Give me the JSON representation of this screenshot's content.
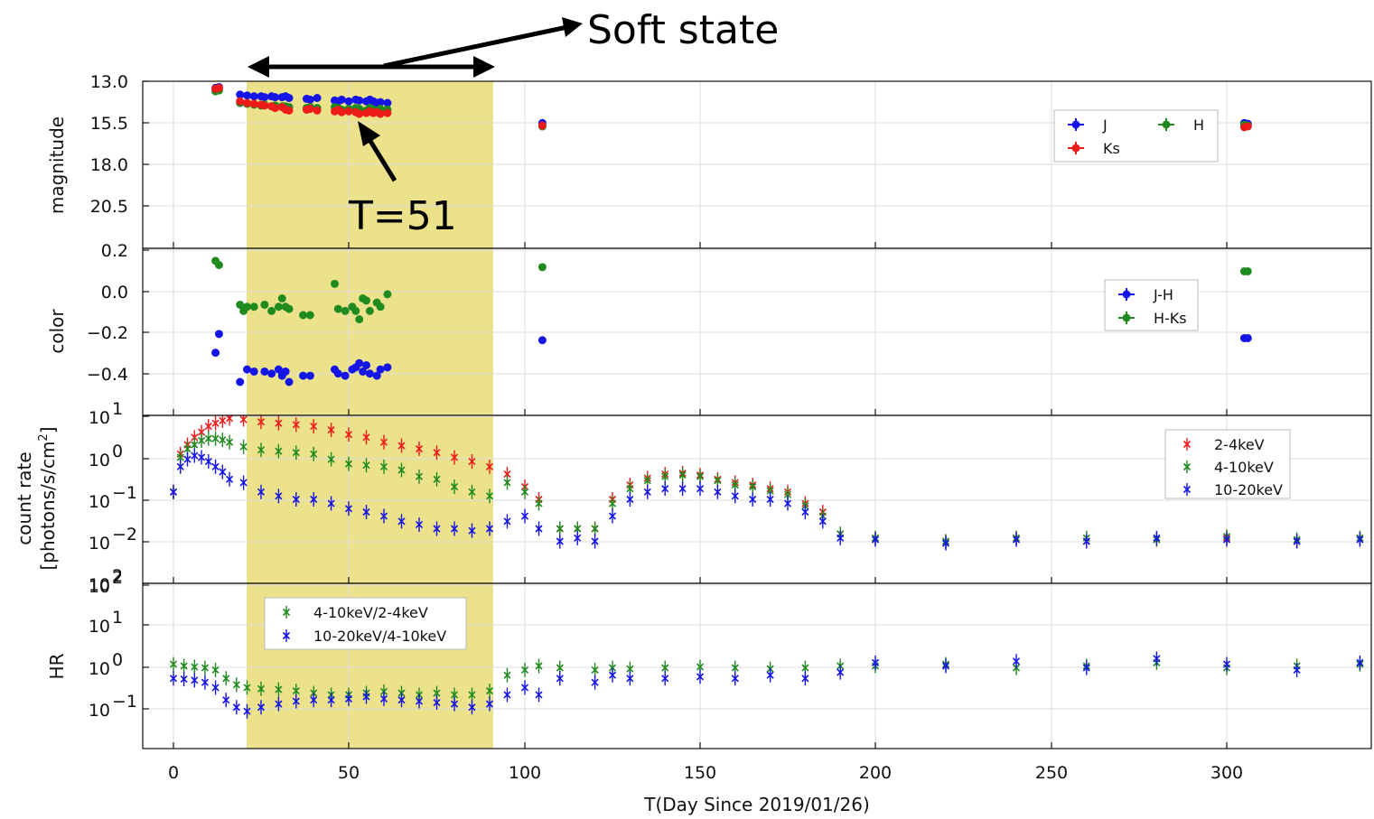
{
  "annotations": {
    "soft_state": "Soft state",
    "t51": "T=51"
  },
  "colors": {
    "blue": "#1515e6",
    "green": "#1f8a1f",
    "red": "#ee1b1b",
    "shade": "#ede28c",
    "grid": "#dddddd"
  },
  "chart_data": [
    {
      "type": "scatter",
      "ylabel": "magnitude",
      "xlim": [
        -9,
        340
      ],
      "ylim": [
        23.0,
        13.0
      ],
      "yticks": [
        "13.0",
        "15.5",
        "18.0",
        "20.5"
      ],
      "shaded_range": [
        21,
        91
      ],
      "legend": {
        "position": "top-right",
        "entries": [
          "J",
          "H",
          "Ks"
        ]
      },
      "series": [
        {
          "name": "J",
          "color": "#1515e6",
          "x": [
            12,
            13,
            19,
            21,
            23,
            25,
            26,
            28,
            29,
            31,
            32,
            33,
            38,
            39,
            41,
            46,
            47,
            48,
            50,
            52,
            53,
            55,
            56,
            57,
            58,
            59,
            61,
            105,
            305,
            306
          ],
          "y": [
            13.4,
            13.35,
            13.8,
            13.85,
            13.9,
            13.9,
            13.95,
            13.9,
            13.95,
            13.95,
            13.9,
            14.0,
            14.05,
            14.1,
            14.0,
            14.15,
            14.2,
            14.1,
            14.2,
            14.1,
            14.15,
            14.2,
            14.1,
            14.2,
            14.3,
            14.25,
            14.3,
            15.5,
            15.5,
            15.55
          ]
        },
        {
          "name": "H",
          "color": "#1f8a1f",
          "x": [
            12,
            13,
            19,
            21,
            23,
            25,
            26,
            28,
            29,
            31,
            32,
            33,
            38,
            39,
            41,
            46,
            47,
            48,
            50,
            52,
            53,
            55,
            56,
            57,
            58,
            59,
            61,
            105,
            305,
            306
          ],
          "y": [
            13.6,
            13.55,
            14.3,
            14.35,
            14.4,
            14.45,
            14.4,
            14.5,
            14.45,
            14.5,
            14.5,
            14.55,
            14.6,
            14.55,
            14.6,
            14.55,
            14.6,
            14.7,
            14.65,
            14.6,
            14.65,
            14.75,
            14.6,
            14.7,
            14.75,
            14.65,
            14.7,
            15.7,
            15.6,
            15.65
          ]
        },
        {
          "name": "Ks",
          "color": "#ee1b1b",
          "x": [
            12,
            13,
            19,
            21,
            23,
            25,
            26,
            28,
            29,
            31,
            32,
            33,
            38,
            39,
            41,
            46,
            47,
            48,
            50,
            52,
            53,
            55,
            56,
            57,
            58,
            59,
            61,
            105,
            305,
            306
          ],
          "y": [
            13.45,
            13.4,
            14.2,
            14.3,
            14.35,
            14.4,
            14.45,
            14.5,
            14.6,
            14.55,
            14.7,
            14.75,
            14.7,
            14.65,
            14.75,
            14.8,
            14.7,
            14.85,
            14.8,
            14.85,
            14.95,
            14.9,
            14.8,
            14.9,
            14.85,
            14.95,
            14.9,
            15.65,
            15.75,
            15.7
          ]
        }
      ]
    },
    {
      "type": "scatter",
      "ylabel": "color",
      "xlim": [
        -9,
        340
      ],
      "ylim": [
        -0.6,
        0.2
      ],
      "yticks": [
        "0.2",
        "0.0",
        "−0.2",
        "−0.4"
      ],
      "shaded_range": [
        21,
        91
      ],
      "legend": {
        "position": "right",
        "entries": [
          "J-H",
          "H-Ks"
        ]
      },
      "series": [
        {
          "name": "J-H",
          "color": "#1515e6",
          "x": [
            12,
            13,
            19,
            21,
            23,
            26,
            28,
            30,
            31,
            32,
            33,
            37,
            39,
            46,
            47,
            49,
            51,
            52,
            53,
            54,
            55,
            56,
            58,
            59,
            61,
            105,
            305,
            306
          ],
          "y": [
            -0.3,
            -0.21,
            -0.44,
            -0.38,
            -0.39,
            -0.39,
            -0.4,
            -0.38,
            -0.41,
            -0.39,
            -0.44,
            -0.41,
            -0.41,
            -0.38,
            -0.4,
            -0.41,
            -0.38,
            -0.37,
            -0.35,
            -0.39,
            -0.36,
            -0.4,
            -0.41,
            -0.38,
            -0.37,
            -0.24,
            -0.23,
            -0.23
          ]
        },
        {
          "name": "H-Ks",
          "color": "#1f8a1f",
          "x": [
            12,
            13,
            19,
            20,
            21,
            23,
            26,
            28,
            30,
            31,
            32,
            33,
            37,
            39,
            46,
            47,
            49,
            51,
            52,
            53,
            54,
            55,
            56,
            58,
            59,
            61,
            105,
            305,
            306
          ],
          "y": [
            0.14,
            0.12,
            -0.07,
            -0.1,
            -0.08,
            -0.08,
            -0.07,
            -0.1,
            -0.08,
            -0.04,
            -0.08,
            -0.09,
            -0.12,
            -0.12,
            0.03,
            -0.09,
            -0.1,
            -0.08,
            -0.1,
            -0.14,
            -0.04,
            -0.05,
            -0.1,
            -0.06,
            -0.08,
            -0.02,
            0.11,
            0.09,
            0.09
          ]
        }
      ]
    },
    {
      "type": "scatter",
      "ylabel": "count rate",
      "ylabel2": "[photons/s/cm",
      "ylabel2_sup": "2",
      "ylabel2_end": "]",
      "log_scale": true,
      "xlim": [
        -9,
        340
      ],
      "ylim": [
        0.001,
        10
      ],
      "yticks": [
        {
          "base": "10",
          "exp": "1"
        },
        {
          "base": "10",
          "exp": "0"
        },
        {
          "base": "10",
          "exp": "−1"
        },
        {
          "base": "10",
          "exp": "−2"
        },
        {
          "base": "10",
          "exp": "2"
        }
      ],
      "shaded_range": [
        21,
        91
      ],
      "legend": {
        "position": "top-right",
        "entries": [
          "2-4keV",
          "4-10keV",
          "10-20keV"
        ]
      },
      "series": [
        {
          "name": "2-4keV",
          "color": "#ee1b1b",
          "x": [
            0,
            2,
            4,
            6,
            8,
            10,
            12,
            14,
            16,
            20,
            25,
            30,
            35,
            40,
            45,
            50,
            55,
            60,
            65,
            70,
            75,
            80,
            85,
            90,
            95,
            100,
            104,
            110,
            115,
            120,
            125,
            130,
            135,
            140,
            145,
            150,
            155,
            160,
            165,
            170,
            175,
            180,
            185,
            190,
            200,
            220,
            240,
            260,
            280,
            300,
            320,
            338
          ],
          "y": [
            0.15,
            1.2,
            2.0,
            3.0,
            4.0,
            5.5,
            6.5,
            7.5,
            8.5,
            8.0,
            7.0,
            6.5,
            6.0,
            5.5,
            4.5,
            3.5,
            3.0,
            2.3,
            1.9,
            1.6,
            1.3,
            1.0,
            0.8,
            0.6,
            0.4,
            0.2,
            0.1,
            0.02,
            0.02,
            0.02,
            0.1,
            0.22,
            0.32,
            0.4,
            0.42,
            0.38,
            0.3,
            0.25,
            0.22,
            0.18,
            0.15,
            0.08,
            0.05,
            0.015,
            0.012,
            0.01,
            0.012,
            0.01,
            0.011,
            0.012,
            0.01,
            0.012
          ]
        },
        {
          "name": "4-10keV",
          "color": "#1f8a1f",
          "x": [
            0,
            2,
            4,
            6,
            8,
            10,
            12,
            14,
            16,
            20,
            25,
            30,
            35,
            40,
            45,
            50,
            55,
            60,
            65,
            70,
            75,
            80,
            85,
            90,
            95,
            100,
            104,
            110,
            115,
            120,
            125,
            130,
            135,
            140,
            145,
            150,
            155,
            160,
            165,
            170,
            175,
            180,
            185,
            190,
            200,
            220,
            240,
            260,
            280,
            300,
            320,
            338
          ],
          "y": [
            0.15,
            1.0,
            1.6,
            2.0,
            2.5,
            2.8,
            2.8,
            2.6,
            2.3,
            1.8,
            1.5,
            1.4,
            1.3,
            1.2,
            0.9,
            0.7,
            0.65,
            0.6,
            0.5,
            0.35,
            0.3,
            0.2,
            0.15,
            0.12,
            0.25,
            0.15,
            0.08,
            0.02,
            0.02,
            0.02,
            0.08,
            0.18,
            0.28,
            0.35,
            0.38,
            0.35,
            0.28,
            0.22,
            0.2,
            0.16,
            0.13,
            0.07,
            0.04,
            0.015,
            0.012,
            0.01,
            0.012,
            0.012,
            0.011,
            0.013,
            0.011,
            0.012
          ]
        },
        {
          "name": "10-20keV",
          "color": "#1515e6",
          "x": [
            0,
            2,
            4,
            6,
            8,
            10,
            12,
            14,
            16,
            20,
            25,
            30,
            35,
            40,
            45,
            50,
            55,
            60,
            65,
            70,
            75,
            80,
            85,
            90,
            95,
            100,
            104,
            110,
            115,
            120,
            125,
            130,
            135,
            140,
            145,
            150,
            155,
            160,
            165,
            170,
            175,
            180,
            185,
            190,
            200,
            220,
            240,
            260,
            280,
            300,
            320,
            338
          ],
          "y": [
            0.15,
            0.6,
            0.9,
            1.1,
            1.0,
            0.8,
            0.6,
            0.45,
            0.3,
            0.25,
            0.15,
            0.12,
            0.1,
            0.1,
            0.08,
            0.06,
            0.05,
            0.04,
            0.03,
            0.025,
            0.02,
            0.02,
            0.018,
            0.02,
            0.03,
            0.04,
            0.02,
            0.01,
            0.012,
            0.01,
            0.04,
            0.1,
            0.15,
            0.18,
            0.18,
            0.18,
            0.15,
            0.12,
            0.1,
            0.1,
            0.08,
            0.05,
            0.03,
            0.012,
            0.011,
            0.009,
            0.011,
            0.01,
            0.012,
            0.011,
            0.01,
            0.011
          ]
        }
      ]
    },
    {
      "type": "scatter",
      "ylabel": "HR",
      "log_scale": true,
      "xlim": [
        -9,
        340
      ],
      "ylim": [
        0.01,
        100
      ],
      "yticks": [
        {
          "base": "10",
          "exp": "2"
        },
        {
          "base": "10",
          "exp": "1"
        },
        {
          "base": "10",
          "exp": "0"
        },
        {
          "base": "10",
          "exp": "−1"
        }
      ],
      "shaded_range": [
        21,
        91
      ],
      "legend": {
        "position": "top-left",
        "entries": [
          "4-10keV/2-4keV",
          "10-20keV/4-10keV"
        ]
      },
      "series": [
        {
          "name": "4-10keV/2-4keV",
          "color": "#1f8a1f",
          "x": [
            0,
            3,
            6,
            9,
            12,
            15,
            18,
            21,
            25,
            30,
            35,
            40,
            45,
            50,
            55,
            60,
            65,
            70,
            75,
            80,
            85,
            90,
            95,
            100,
            104,
            110,
            120,
            125,
            130,
            140,
            150,
            160,
            170,
            180,
            190,
            200,
            220,
            240,
            260,
            280,
            300,
            320,
            338
          ],
          "y": [
            1.1,
            1.0,
            0.95,
            0.9,
            0.8,
            0.5,
            0.35,
            0.3,
            0.28,
            0.27,
            0.25,
            0.22,
            0.2,
            0.2,
            0.22,
            0.24,
            0.22,
            0.2,
            0.22,
            0.2,
            0.2,
            0.25,
            0.6,
            0.8,
            1.0,
            0.9,
            0.8,
            0.9,
            0.85,
            0.9,
            0.95,
            0.9,
            0.85,
            0.9,
            1.0,
            1.0,
            1.1,
            0.9,
            1.0,
            1.2,
            0.9,
            1.0,
            1.1
          ]
        },
        {
          "name": "10-20keV/4-10keV",
          "color": "#1515e6",
          "x": [
            0,
            3,
            6,
            9,
            12,
            15,
            18,
            21,
            25,
            30,
            35,
            40,
            45,
            50,
            55,
            60,
            65,
            70,
            75,
            80,
            85,
            90,
            95,
            100,
            104,
            110,
            120,
            125,
            130,
            140,
            150,
            160,
            170,
            180,
            190,
            200,
            220,
            240,
            260,
            280,
            300,
            320,
            338
          ],
          "y": [
            0.5,
            0.48,
            0.45,
            0.4,
            0.3,
            0.15,
            0.1,
            0.08,
            0.1,
            0.12,
            0.14,
            0.15,
            0.15,
            0.16,
            0.18,
            0.16,
            0.15,
            0.14,
            0.13,
            0.12,
            0.1,
            0.12,
            0.2,
            0.3,
            0.2,
            0.5,
            0.4,
            0.6,
            0.5,
            0.5,
            0.55,
            0.5,
            0.6,
            0.5,
            0.7,
            1.2,
            1.0,
            1.3,
            0.9,
            1.5,
            1.1,
            0.8,
            1.2
          ]
        }
      ]
    }
  ],
  "xaxis": {
    "label": "T(Day Since 2019/01/26)",
    "ticks": [
      "0",
      "50",
      "100",
      "150",
      "200",
      "250",
      "300"
    ]
  }
}
